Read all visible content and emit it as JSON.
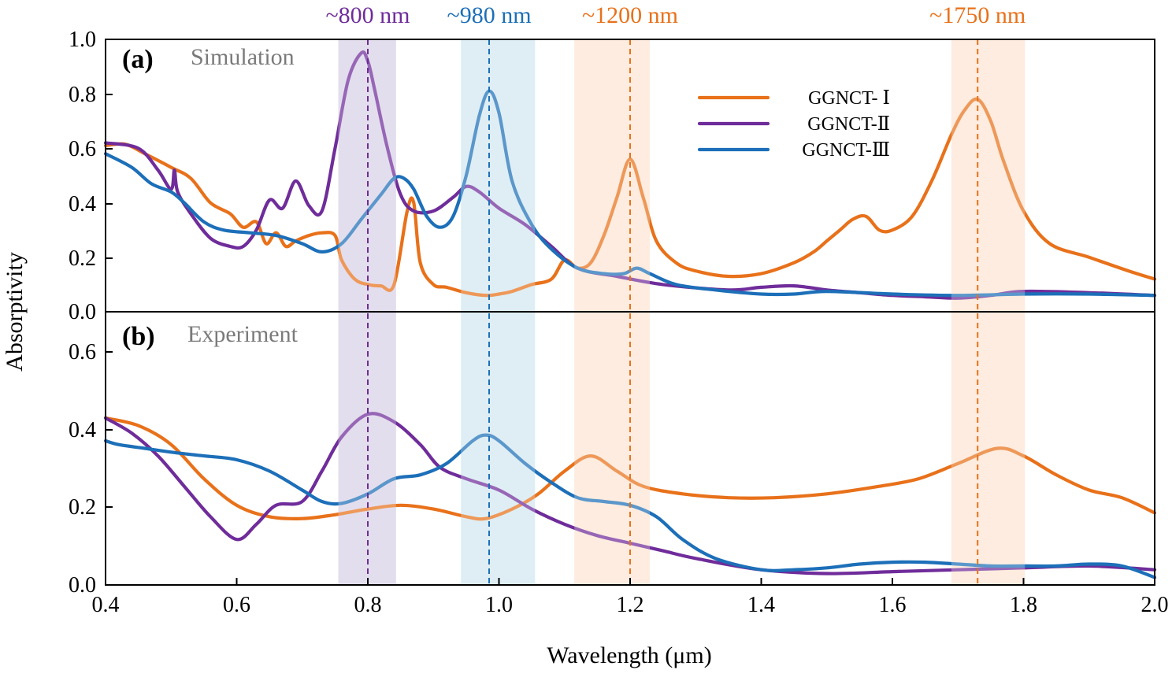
{
  "chart_data": [
    {
      "type": "line",
      "panel_letter": "(a)",
      "panel_name": "Simulation",
      "xlim": [
        0.4,
        2.0
      ],
      "ylim": [
        0.0,
        1.0
      ],
      "yticks": [
        "0.0",
        "0.2",
        "0.4",
        "0.6",
        "0.8",
        "1.0"
      ],
      "grid": false,
      "legend_position": "top-right",
      "series": [
        {
          "name": "GGNCT- Ⅰ",
          "color": "#E8711A",
          "x": [
            0.4,
            0.43,
            0.46,
            0.5,
            0.53,
            0.56,
            0.59,
            0.61,
            0.63,
            0.645,
            0.66,
            0.675,
            0.69,
            0.71,
            0.73,
            0.75,
            0.76,
            0.78,
            0.8,
            0.82,
            0.84,
            0.86,
            0.87,
            0.88,
            0.9,
            0.92,
            0.95,
            0.98,
            1.0,
            1.02,
            1.05,
            1.08,
            1.1,
            1.12,
            1.14,
            1.16,
            1.18,
            1.2,
            1.22,
            1.24,
            1.27,
            1.3,
            1.35,
            1.4,
            1.45,
            1.48,
            1.5,
            1.52,
            1.54,
            1.56,
            1.58,
            1.6,
            1.63,
            1.66,
            1.69,
            1.71,
            1.73,
            1.75,
            1.77,
            1.8,
            1.84,
            1.9,
            1.96,
            2.0
          ],
          "y": [
            0.61,
            0.615,
            0.58,
            0.53,
            0.49,
            0.4,
            0.36,
            0.31,
            0.33,
            0.25,
            0.29,
            0.24,
            0.26,
            0.28,
            0.29,
            0.28,
            0.19,
            0.12,
            0.1,
            0.095,
            0.1,
            0.37,
            0.4,
            0.18,
            0.1,
            0.09,
            0.07,
            0.06,
            0.065,
            0.075,
            0.1,
            0.12,
            0.19,
            0.16,
            0.18,
            0.28,
            0.42,
            0.56,
            0.42,
            0.26,
            0.18,
            0.15,
            0.13,
            0.14,
            0.18,
            0.22,
            0.26,
            0.3,
            0.34,
            0.35,
            0.3,
            0.3,
            0.35,
            0.48,
            0.65,
            0.74,
            0.78,
            0.7,
            0.55,
            0.37,
            0.25,
            0.2,
            0.15,
            0.12
          ]
        },
        {
          "name": "GGNCT-Ⅱ",
          "color": "#6F2C9A",
          "x": [
            0.4,
            0.45,
            0.48,
            0.5,
            0.505,
            0.51,
            0.53,
            0.56,
            0.59,
            0.61,
            0.63,
            0.65,
            0.67,
            0.69,
            0.71,
            0.73,
            0.75,
            0.77,
            0.79,
            0.8,
            0.81,
            0.83,
            0.85,
            0.87,
            0.9,
            0.93,
            0.95,
            0.97,
            1.0,
            1.04,
            1.08,
            1.12,
            1.18,
            1.25,
            1.35,
            1.4,
            1.45,
            1.5,
            1.55,
            1.6,
            1.65,
            1.7,
            1.75,
            1.8,
            1.9,
            2.0
          ],
          "y": [
            0.62,
            0.6,
            0.52,
            0.45,
            0.52,
            0.44,
            0.36,
            0.27,
            0.24,
            0.24,
            0.3,
            0.41,
            0.38,
            0.48,
            0.39,
            0.37,
            0.6,
            0.85,
            0.95,
            0.92,
            0.82,
            0.6,
            0.43,
            0.37,
            0.37,
            0.42,
            0.46,
            0.44,
            0.38,
            0.32,
            0.24,
            0.16,
            0.13,
            0.1,
            0.08,
            0.09,
            0.095,
            0.08,
            0.07,
            0.06,
            0.055,
            0.05,
            0.06,
            0.075,
            0.07,
            0.06
          ]
        },
        {
          "name": "GGNCT-Ⅲ",
          "color": "#1C6FB8",
          "x": [
            0.4,
            0.44,
            0.47,
            0.5,
            0.52,
            0.55,
            0.58,
            0.62,
            0.66,
            0.7,
            0.73,
            0.76,
            0.79,
            0.82,
            0.84,
            0.855,
            0.87,
            0.89,
            0.91,
            0.93,
            0.95,
            0.97,
            0.985,
            1.0,
            1.02,
            1.05,
            1.08,
            1.12,
            1.16,
            1.19,
            1.21,
            1.23,
            1.27,
            1.33,
            1.4,
            1.45,
            1.5,
            1.6,
            1.7,
            1.8,
            1.9,
            2.0
          ],
          "y": [
            0.58,
            0.53,
            0.47,
            0.44,
            0.4,
            0.33,
            0.3,
            0.29,
            0.28,
            0.25,
            0.22,
            0.25,
            0.34,
            0.43,
            0.49,
            0.49,
            0.45,
            0.35,
            0.31,
            0.35,
            0.5,
            0.72,
            0.81,
            0.73,
            0.48,
            0.32,
            0.23,
            0.16,
            0.14,
            0.14,
            0.16,
            0.14,
            0.1,
            0.08,
            0.065,
            0.065,
            0.075,
            0.065,
            0.06,
            0.065,
            0.065,
            0.06
          ]
        }
      ]
    },
    {
      "type": "line",
      "panel_letter": "(b)",
      "panel_name": "Experiment",
      "xlim": [
        0.4,
        2.0
      ],
      "ylim": [
        0.0,
        0.72
      ],
      "yticks": [
        "0.0",
        "0.2",
        "0.4",
        "0.6"
      ],
      "grid": false,
      "series": [
        {
          "name": "GGNCT- Ⅰ",
          "color": "#E8711A",
          "x": [
            0.4,
            0.45,
            0.5,
            0.55,
            0.6,
            0.65,
            0.7,
            0.75,
            0.8,
            0.85,
            0.9,
            0.95,
            0.98,
            1.02,
            1.06,
            1.1,
            1.14,
            1.18,
            1.22,
            1.28,
            1.35,
            1.42,
            1.5,
            1.58,
            1.64,
            1.7,
            1.76,
            1.8,
            1.85,
            1.9,
            1.95,
            2.0
          ],
          "y": [
            0.44,
            0.42,
            0.37,
            0.28,
            0.21,
            0.18,
            0.175,
            0.185,
            0.2,
            0.21,
            0.2,
            0.18,
            0.175,
            0.2,
            0.24,
            0.3,
            0.34,
            0.3,
            0.26,
            0.24,
            0.23,
            0.23,
            0.24,
            0.26,
            0.28,
            0.32,
            0.36,
            0.34,
            0.29,
            0.25,
            0.23,
            0.19
          ]
        },
        {
          "name": "GGNCT-Ⅱ",
          "color": "#6F2C9A",
          "x": [
            0.4,
            0.44,
            0.48,
            0.52,
            0.56,
            0.6,
            0.63,
            0.66,
            0.7,
            0.73,
            0.76,
            0.8,
            0.84,
            0.88,
            0.91,
            0.95,
            1.0,
            1.05,
            1.1,
            1.15,
            1.2,
            1.25,
            1.3,
            1.4,
            1.5,
            1.6,
            1.7,
            1.8,
            1.9,
            2.0
          ],
          "y": [
            0.44,
            0.4,
            0.34,
            0.26,
            0.18,
            0.12,
            0.16,
            0.21,
            0.22,
            0.3,
            0.39,
            0.45,
            0.43,
            0.37,
            0.31,
            0.28,
            0.25,
            0.2,
            0.16,
            0.13,
            0.11,
            0.09,
            0.07,
            0.04,
            0.03,
            0.035,
            0.04,
            0.045,
            0.05,
            0.04
          ]
        },
        {
          "name": "GGNCT-Ⅲ",
          "color": "#1C6FB8",
          "x": [
            0.4,
            0.42,
            0.46,
            0.5,
            0.55,
            0.6,
            0.65,
            0.7,
            0.73,
            0.76,
            0.8,
            0.84,
            0.88,
            0.92,
            0.96,
            0.98,
            1.0,
            1.04,
            1.08,
            1.12,
            1.16,
            1.2,
            1.24,
            1.28,
            1.33,
            1.4,
            1.45,
            1.5,
            1.55,
            1.6,
            1.65,
            1.7,
            1.75,
            1.8,
            1.85,
            1.9,
            1.95,
            2.0
          ],
          "y": [
            0.38,
            0.37,
            0.36,
            0.35,
            0.34,
            0.33,
            0.3,
            0.25,
            0.22,
            0.215,
            0.24,
            0.28,
            0.29,
            0.32,
            0.38,
            0.395,
            0.38,
            0.32,
            0.27,
            0.23,
            0.22,
            0.21,
            0.18,
            0.12,
            0.07,
            0.04,
            0.04,
            0.045,
            0.055,
            0.06,
            0.06,
            0.055,
            0.05,
            0.05,
            0.05,
            0.055,
            0.05,
            0.02
          ]
        }
      ]
    }
  ],
  "x_axis": {
    "label": "Wavelength (μm)",
    "ticks": [
      "0.4",
      "0.6",
      "0.8",
      "1.0",
      "1.2",
      "1.4",
      "1.6",
      "1.8",
      "2.0"
    ]
  },
  "y_axis": {
    "label": "Absorptivity"
  },
  "bands": [
    {
      "label": "~800 nm",
      "center": 0.8,
      "from": 0.755,
      "to": 0.843,
      "color": "#6F2C9A",
      "fill": "#D9D1E6"
    },
    {
      "label": "~980 nm",
      "center": 0.985,
      "from": 0.942,
      "to": 1.055,
      "color": "#1C6FB8",
      "fill": "#D2E8F0"
    },
    {
      "label": "~1200 nm",
      "center": 1.2,
      "from": 1.115,
      "to": 1.23,
      "color": "#E8711A",
      "fill": "#FCE5D3"
    },
    {
      "label": "~1750 nm",
      "center": 1.73,
      "from": 1.69,
      "to": 1.802,
      "color": "#E8711A",
      "fill": "#FCE5D3"
    }
  ]
}
